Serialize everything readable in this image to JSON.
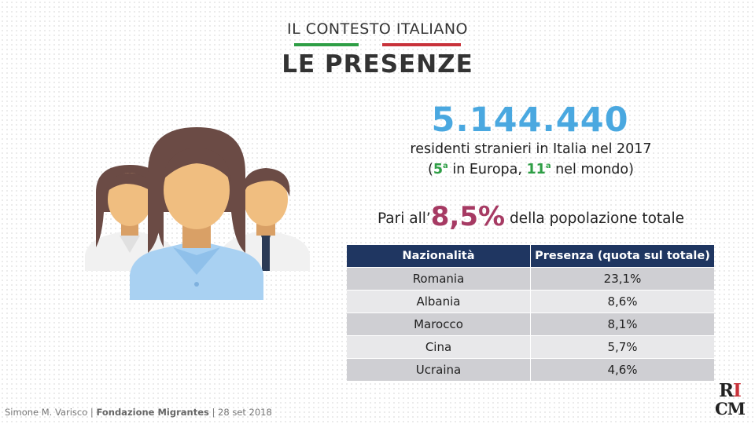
{
  "header": {
    "subtitle": "IL CONTESTO ITALIANO",
    "title": "LE PRESENZE",
    "flag_colors": [
      "#2e9e45",
      "#c8323a"
    ]
  },
  "illustration": {
    "icon": "people-group-icon"
  },
  "stats": {
    "total": "5.144.440",
    "description": "residenti stranieri in Italia nel 2017",
    "rank_open": "(",
    "rank_europe_num": "5",
    "rank_europe_sup": "a",
    "rank_europe_text": " in Europa, ",
    "rank_world_num": "11",
    "rank_world_sup": "a",
    "rank_world_text": " nel mondo)",
    "share_prefix": "Pari all’",
    "share_value": "8,5%",
    "share_suffix": " della popolazione totale"
  },
  "table": {
    "headers": [
      "Nazionalità",
      "Presenza (quota sul totale)"
    ],
    "rows": [
      [
        "Romania",
        "23,1%"
      ],
      [
        "Albania",
        "8,6%"
      ],
      [
        "Marocco",
        "8,1%"
      ],
      [
        "Cina",
        "5,7%"
      ],
      [
        "Ucraina",
        "4,6%"
      ]
    ]
  },
  "footer": {
    "author": "Simone M. Varisco",
    "sep1": " | ",
    "organization": "Fondazione Migrantes",
    "sep2": " | ",
    "date": "28 set 2018"
  },
  "logo": {
    "top": "RI",
    "bottom": "CM"
  }
}
